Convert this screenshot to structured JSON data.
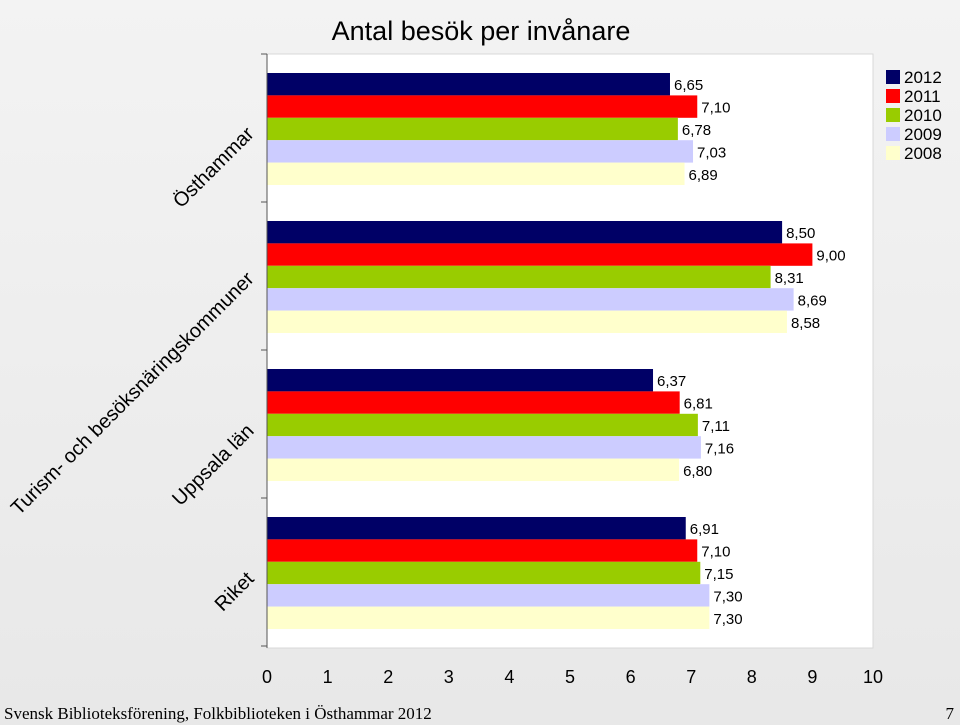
{
  "chart_data": {
    "type": "bar",
    "orientation": "horizontal",
    "title": "Antal besök per invånare",
    "categories": [
      "Östhammar",
      "Turism- och besöksnäringskommuner",
      "Uppsala län",
      "Riket"
    ],
    "series": [
      {
        "name": "2012",
        "color": "#000066",
        "values": [
          6.65,
          8.5,
          6.37,
          6.91
        ],
        "labels": [
          "6,65",
          "8,50",
          "6,37",
          "6,91"
        ]
      },
      {
        "name": "2011",
        "color": "#ff0000",
        "values": [
          7.1,
          9.0,
          6.81,
          7.1
        ],
        "labels": [
          "7,10",
          "9,00",
          "6,81",
          "7,10"
        ]
      },
      {
        "name": "2010",
        "color": "#99cc00",
        "values": [
          6.78,
          8.31,
          7.11,
          7.15
        ],
        "labels": [
          "6,78",
          "8,31",
          "7,11",
          "7,15"
        ]
      },
      {
        "name": "2009",
        "color": "#ccccff",
        "values": [
          7.03,
          8.69,
          7.16,
          7.3
        ],
        "labels": [
          "7,03",
          "8,69",
          "7,16",
          "7,30"
        ]
      },
      {
        "name": "2008",
        "color": "#ffffcc",
        "values": [
          6.89,
          8.58,
          6.8,
          7.3
        ],
        "labels": [
          "6,89",
          "8,58",
          "6,80",
          "7,30"
        ]
      }
    ],
    "xlim": [
      0,
      10
    ],
    "xticks": [
      "0",
      "1",
      "2",
      "3",
      "4",
      "5",
      "6",
      "7",
      "8",
      "9",
      "10"
    ],
    "legend": "top-right",
    "grid": false
  },
  "footer": {
    "source": "Svensk Biblioteksförening, Folkbiblioteken i Östhammar 2012",
    "page": "7"
  }
}
